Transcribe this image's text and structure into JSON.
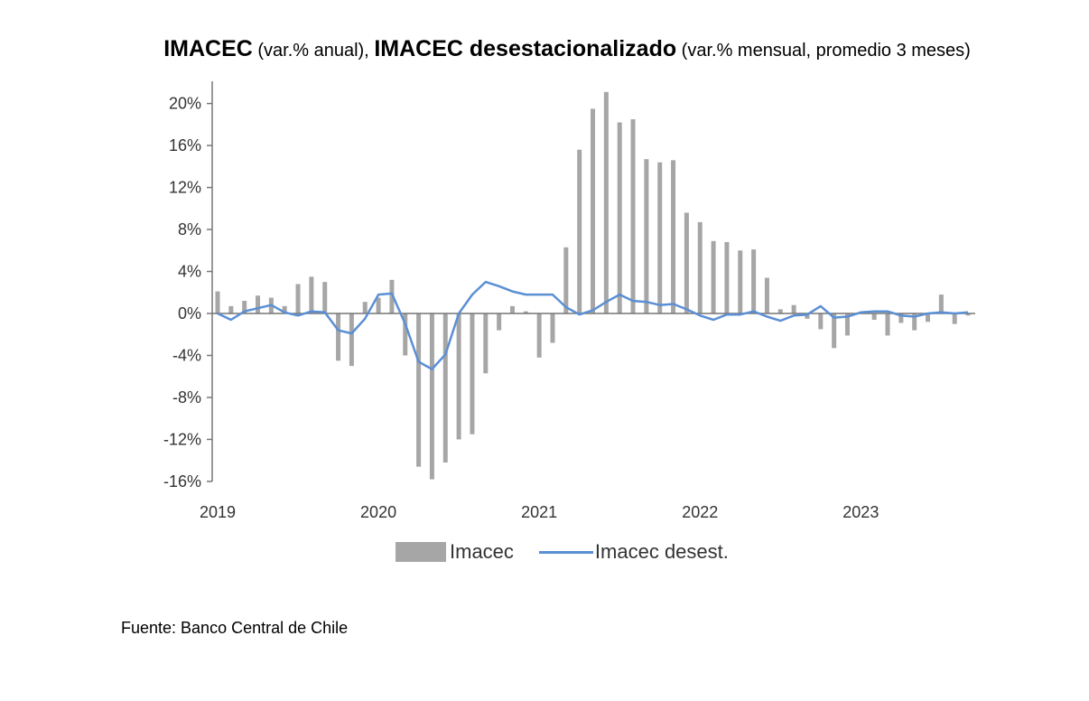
{
  "chart_data": {
    "type": "bar+line",
    "title_parts": [
      {
        "text": "IMACEC",
        "bold": true
      },
      {
        "text": " (var.% anual), ",
        "bold": false
      },
      {
        "text": "IMACEC desestacionalizado",
        "bold": true
      },
      {
        "text": " (var.% mensual, promedio 3 meses)",
        "bold": false
      }
    ],
    "x_start": "2019-01",
    "x_end": "2023-09",
    "x_tick_labels": [
      "2019",
      "2020",
      "2021",
      "2022",
      "2023"
    ],
    "y_tick_labels": [
      "20%",
      "16%",
      "12%",
      "8%",
      "4%",
      "0%",
      "-4%",
      "-8%",
      "-12%",
      "-16%"
    ],
    "ylim": [
      -16,
      22
    ],
    "grid": false,
    "legend_position": "bottom",
    "series": [
      {
        "name": "Imacec",
        "type": "bar",
        "color": "#a6a6a6",
        "values": [
          2.1,
          0.7,
          1.2,
          1.7,
          1.5,
          0.7,
          2.8,
          3.5,
          3.0,
          -4.5,
          -5.0,
          1.1,
          1.5,
          3.2,
          -4.0,
          -14.6,
          -15.8,
          -14.2,
          -12.0,
          -11.5,
          -5.7,
          -1.6,
          0.7,
          0.2,
          -4.2,
          -2.8,
          6.3,
          15.6,
          19.5,
          21.1,
          18.2,
          18.5,
          14.7,
          14.4,
          14.6,
          9.6,
          8.7,
          6.9,
          6.8,
          6.0,
          6.1,
          3.4,
          0.4,
          0.8,
          -0.5,
          -1.5,
          -3.3,
          -2.1,
          0.1,
          -0.6,
          -2.1,
          -0.9,
          -1.6,
          -0.8,
          1.8,
          -1.0,
          -0.2
        ]
      },
      {
        "name": "Imacec desest.",
        "type": "line",
        "color": "#5b8fd4",
        "values": [
          0.0,
          -0.6,
          0.2,
          0.5,
          0.8,
          0.1,
          -0.2,
          0.2,
          0.1,
          -1.6,
          -1.9,
          -0.5,
          1.8,
          1.9,
          -1.0,
          -4.6,
          -5.3,
          -3.9,
          0.0,
          1.8,
          3.0,
          2.6,
          2.1,
          1.8,
          1.8,
          1.8,
          0.6,
          -0.1,
          0.3,
          1.1,
          1.8,
          1.2,
          1.1,
          0.8,
          0.9,
          0.4,
          -0.2,
          -0.6,
          -0.1,
          -0.1,
          0.2,
          -0.3,
          -0.7,
          -0.2,
          -0.1,
          0.7,
          -0.4,
          -0.3,
          0.1,
          0.2,
          0.2,
          -0.2,
          -0.3,
          0.0,
          0.1,
          0.0,
          0.1
        ]
      }
    ]
  },
  "source": "Fuente: Banco Central de Chile"
}
